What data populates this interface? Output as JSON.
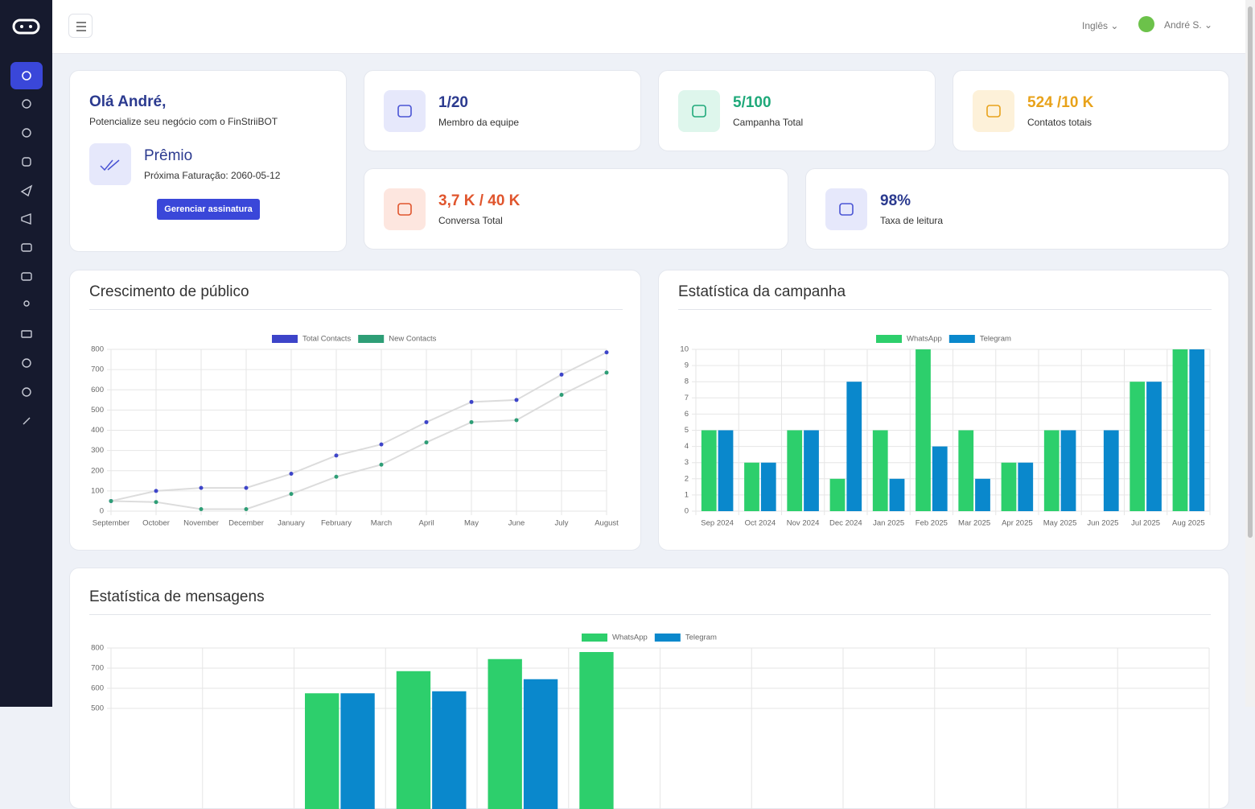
{
  "header": {
    "language": "Inglês",
    "user": "André S."
  },
  "welcome": {
    "greeting": "Olá André,",
    "tagline": "Potencialize seu negócio com o FinStriiBOT",
    "plan": "Prêmio",
    "next_billing": "Próxima Faturação: 2060-05-12",
    "button": "Gerenciar assinatura"
  },
  "stats": [
    {
      "value": "1/20",
      "label": "Membro da equipe"
    },
    {
      "value": "5/100",
      "label": "Campanha Total"
    },
    {
      "value": "524 /10 K",
      "label": "Contatos totais"
    },
    {
      "value": "3,7 K / 40 K",
      "label": "Conversa Total"
    },
    {
      "value": "98%",
      "label": "Taxa de leitura"
    }
  ],
  "chart_data": [
    {
      "type": "line",
      "title": "Crescimento de público",
      "categories": [
        "September",
        "October",
        "November",
        "December",
        "January",
        "February",
        "March",
        "April",
        "May",
        "June",
        "July",
        "August"
      ],
      "series": [
        {
          "name": "Total Contacts",
          "color": "#3d44c9",
          "values": [
            50,
            100,
            115,
            115,
            185,
            275,
            330,
            440,
            540,
            550,
            675,
            785
          ]
        },
        {
          "name": "New Contacts",
          "color": "#2e9e76",
          "values": [
            50,
            45,
            10,
            10,
            85,
            170,
            230,
            340,
            440,
            450,
            575,
            685
          ]
        }
      ],
      "line_color": "#dcdcdc",
      "ylim": [
        0,
        800
      ],
      "yticks": [
        0,
        100,
        200,
        300,
        400,
        500,
        600,
        700,
        800
      ],
      "grid": true
    },
    {
      "type": "bar",
      "title": "Estatística da campanha",
      "categories": [
        "Sep 2024",
        "Oct 2024",
        "Nov 2024",
        "Dec 2024",
        "Jan 2025",
        "Feb 2025",
        "Mar 2025",
        "Apr 2025",
        "May 2025",
        "Jun 2025",
        "Jul 2025",
        "Aug 2025"
      ],
      "series": [
        {
          "name": "WhatsApp",
          "color": "#2dcf6c",
          "values": [
            5,
            3,
            5,
            2,
            5,
            10,
            5,
            3,
            5,
            0,
            8,
            10
          ]
        },
        {
          "name": "Telegram",
          "color": "#0a88cc",
          "values": [
            5,
            3,
            5,
            8,
            2,
            4,
            2,
            3,
            5,
            5,
            8,
            10
          ]
        }
      ],
      "ylim": [
        0,
        10
      ],
      "yticks": [
        0,
        1,
        2,
        3,
        4,
        5,
        6,
        7,
        8,
        9,
        10
      ],
      "grid": true
    },
    {
      "type": "bar",
      "title": "Estatística de mensagens",
      "categories": [
        null,
        null,
        null,
        null,
        null,
        null,
        null,
        null,
        null,
        null,
        null,
        null
      ],
      "series": [
        {
          "name": "WhatsApp",
          "color": "#2dcf6c",
          "values": [
            null,
            null,
            575,
            685,
            745,
            780,
            null,
            null,
            null,
            null,
            null,
            null
          ]
        },
        {
          "name": "Telegram",
          "color": "#0a88cc",
          "values": [
            null,
            null,
            575,
            585,
            645,
            null,
            null,
            null,
            null,
            null,
            null,
            null
          ]
        }
      ],
      "ylim": [
        0,
        800
      ],
      "yticks": [
        500,
        600,
        700,
        800
      ],
      "grid": true
    }
  ]
}
